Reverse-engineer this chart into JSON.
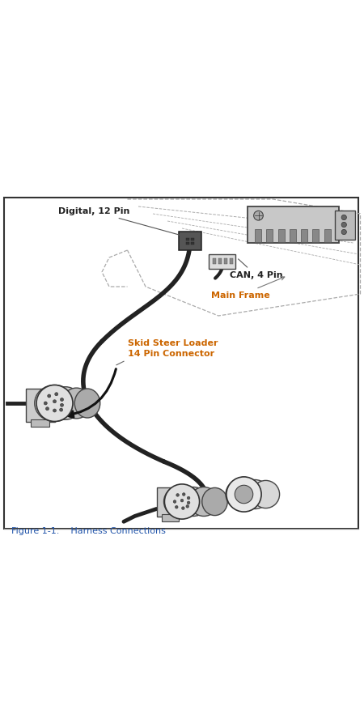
{
  "figure_caption": "Figure 1-1.    Harness Connections",
  "caption_color": "#2255aa",
  "border_color": "#333333",
  "bg_color": "#ffffff",
  "label_digital_12pin": "Digital, 12 Pin",
  "label_can_4pin": "CAN, 4 Pin",
  "label_main_frame": "Main Frame",
  "label_skid_steer": "Skid Steer Loader\n14 Pin Connector",
  "label_color_orange": "#cc6600",
  "label_color_black": "#222222",
  "cable_color": "#222222",
  "dashed_color": "#aaaaaa"
}
